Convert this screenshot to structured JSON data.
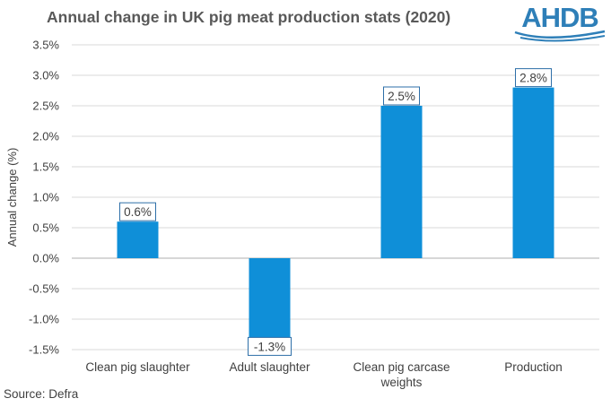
{
  "chart_data": {
    "type": "bar",
    "title": "Annual change in UK pig meat production stats (2020)",
    "categories": [
      "Clean pig slaughter",
      "Adult slaughter",
      "Clean pig carcase weights",
      "Production"
    ],
    "category_lines": [
      [
        "Clean pig slaughter"
      ],
      [
        "Adult slaughter"
      ],
      [
        "Clean pig carcase",
        "weights"
      ],
      [
        "Production"
      ]
    ],
    "values": [
      0.6,
      -1.3,
      2.5,
      2.8
    ],
    "data_labels": [
      "0.6%",
      "-1.3%",
      "2.5%",
      "2.8%"
    ],
    "ylabel": "Annual change (%)",
    "xlabel": "",
    "ylim": [
      -1.5,
      3.5
    ],
    "yticks": [
      3.5,
      3.0,
      2.5,
      2.0,
      1.5,
      1.0,
      0.5,
      0.0,
      -0.5,
      -1.0,
      -1.5
    ],
    "ytick_labels": [
      "3.5%",
      "3.0%",
      "2.5%",
      "2.0%",
      "1.5%",
      "1.0%",
      "0.5%",
      "0.0%",
      "-0.5%",
      "-1.0%",
      "-1.5%"
    ],
    "grid": true,
    "legend": "none",
    "bar_color": "#0f8fd8",
    "label_border_color": "#2e6fa8"
  },
  "logo": {
    "text": "AHDB",
    "color": "#2e7fb8"
  },
  "source": "Source:  Defra"
}
